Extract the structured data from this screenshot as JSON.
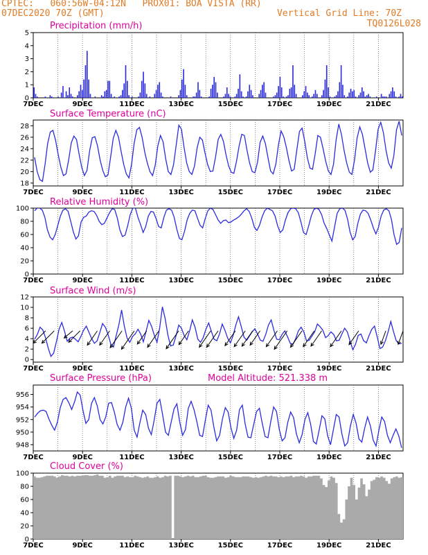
{
  "header": {
    "line1": "CPTEC:   060:56W-04:12N   PROX01: BOA VISTA (RR)",
    "line2_left": "07DEC2020 70Z (GMT)",
    "line2_right": "Vertical Grid Line: 70Z",
    "line3_right": "TQ0126L028"
  },
  "colors": {
    "header": "#e07b24",
    "title": "#e0009a",
    "series": "#2a2ae0",
    "cloud": "#aaaaaa",
    "wind_arrow": "#000000"
  },
  "x_tick_labels": [
    "7DEC",
    "9DEC",
    "11DEC",
    "13DEC",
    "15DEC",
    "17DEC",
    "19DEC",
    "21DEC"
  ],
  "chart_data": [
    {
      "type": "bar",
      "title": "Precipitation (mm/h)",
      "ylim": [
        0,
        5
      ],
      "yticks": [
        0,
        1,
        2,
        3,
        4,
        5
      ],
      "x_range_days": [
        7,
        22
      ],
      "values": [
        0.8,
        0.3,
        0.1,
        0,
        0,
        0,
        0,
        0.1,
        0,
        0,
        0.2,
        0.1,
        0,
        0,
        0,
        0.1,
        0,
        0.4,
        0.9,
        0,
        0.5,
        0.2,
        0.8,
        0.3,
        0.1,
        0,
        0,
        0.2,
        0.5,
        1.0,
        0.6,
        1.4,
        2.5,
        3.6,
        1.4,
        0.3,
        0,
        0,
        0.1,
        0,
        0,
        0,
        0.2,
        0.1,
        0.5,
        0.6,
        1.3,
        1.3,
        0.3,
        0,
        0.1,
        0,
        0,
        0.1,
        0.2,
        0.6,
        1.1,
        2.5,
        1.3,
        0.2,
        0,
        0.1,
        0,
        0,
        0,
        0.1,
        0.4,
        1.3,
        2.0,
        1.1,
        0.3,
        0,
        0.1,
        0,
        0,
        0.3,
        0.6,
        1.0,
        1.2,
        0.4,
        0.1,
        0,
        0,
        0,
        0,
        0.1,
        0,
        0,
        0,
        0,
        0.2,
        0.6,
        1.4,
        2.2,
        1.0,
        0.2,
        0,
        0,
        0,
        0.1,
        0.1,
        0.4,
        1.2,
        0.6,
        0.1,
        0,
        0,
        0,
        0,
        0.1,
        0.7,
        1.0,
        1.6,
        1.2,
        0.4,
        0,
        0,
        0,
        0.1,
        0.3,
        0.8,
        0.3,
        0.1,
        0,
        0,
        0.1,
        0.3,
        0.7,
        1.8,
        0.5,
        0.1,
        0,
        0.1,
        0.5,
        1.0,
        0.6,
        0.2,
        0,
        0,
        0,
        0.3,
        0.6,
        1.0,
        1.2,
        0.4,
        0,
        0,
        0,
        0,
        0.1,
        0.2,
        0.4,
        0.9,
        1.6,
        0.8,
        0.1,
        0,
        0.1,
        0.2,
        0.7,
        0.8,
        2.5,
        1.0,
        0.3,
        0,
        0,
        0,
        0.2,
        0.5,
        0.9,
        0.4,
        0.2,
        0,
        0.1,
        0.3,
        0.6,
        0.3,
        0,
        0,
        0.2,
        0.6,
        1.4,
        2.5,
        0.8,
        0.1,
        0,
        0,
        0.1,
        0.2,
        0.5,
        1.2,
        2.5,
        1.0,
        0.2,
        0,
        0.1,
        0.4,
        0.7,
        0.5,
        0.6,
        0.1,
        0,
        0.2,
        0.4,
        0.8,
        0.5,
        0.1,
        0.2,
        0.3,
        0.1,
        0,
        0,
        0,
        0.1,
        0,
        0,
        0.3,
        0.1,
        0.1,
        0.1,
        0,
        0.3,
        0.5,
        0.8,
        0.5,
        0.1,
        0,
        0.1,
        0.3,
        0.1
      ]
    },
    {
      "type": "line",
      "title": "Surface Temperature (nC)",
      "ylim": [
        17.5,
        29
      ],
      "yticks": [
        18,
        20,
        22,
        24,
        26,
        28
      ],
      "x_range_days": [
        7,
        22
      ],
      "values": [
        22.5,
        20,
        18.6,
        18.3,
        21.2,
        24.9,
        26.9,
        27.2,
        25.5,
        23,
        20.8,
        19.3,
        19.6,
        22,
        25,
        26.2,
        25.6,
        23,
        20.7,
        19.3,
        20.2,
        23.6,
        25.9,
        26.1,
        24.5,
        22,
        20.2,
        19.1,
        19.4,
        22.5,
        25.8,
        27.2,
        26,
        23.5,
        21.2,
        19.6,
        18.9,
        21.3,
        25,
        27.3,
        27.7,
        26,
        23.4,
        21.5,
        20,
        19.3,
        21.1,
        24.5,
        26.3,
        25.2,
        22.2,
        20,
        19.5,
        21.2,
        24.6,
        28.1,
        27.4,
        24.2,
        21.5,
        20,
        19.5,
        21,
        24.2,
        26,
        25.5,
        23.2,
        21.2,
        20,
        20.1,
        22.5,
        25.6,
        26.5,
        25.3,
        22.9,
        21,
        19.9,
        19.7,
        21.8,
        24.5,
        26.5,
        26.3,
        23.7,
        21.5,
        20,
        19.8,
        21.6,
        25.1,
        26.2,
        24.9,
        22.4,
        20.1,
        19.6,
        21.3,
        24.7,
        27.1,
        26.1,
        24.2,
        21.9,
        20.1,
        20.4,
        23.8,
        27,
        27.6,
        25.3,
        22.4,
        20.6,
        20.4,
        23.1,
        26.3,
        26,
        24,
        21.8,
        20.1,
        19.5,
        21.3,
        25.6,
        28.3,
        26.5,
        23.7,
        21.5,
        19.9,
        19.5,
        22,
        25.9,
        27.8,
        26.5,
        24,
        21.5,
        19.9,
        20.3,
        23.6,
        27.4,
        28.6,
        26.8,
        23.7,
        21.5,
        20.6,
        22.8,
        27.3,
        28.8,
        26.3
      ]
    },
    {
      "type": "line",
      "title": "Relative Humidity (%)",
      "ylim": [
        0,
        100
      ],
      "yticks": [
        0,
        20,
        40,
        60,
        80,
        100
      ],
      "x_range_days": [
        7,
        22
      ],
      "values": [
        96,
        100,
        100,
        97,
        86,
        67,
        56,
        52,
        60,
        74,
        88,
        97,
        99,
        95,
        80,
        64,
        53,
        58,
        79,
        86,
        88,
        94,
        96,
        95,
        89,
        80,
        75,
        77,
        85,
        93,
        99,
        98,
        85,
        67,
        57,
        59,
        73,
        90,
        100,
        100,
        86,
        75,
        63,
        72,
        88,
        95,
        94,
        84,
        72,
        70,
        86,
        97,
        99,
        97,
        86,
        68,
        54,
        52,
        65,
        82,
        92,
        97,
        96,
        85,
        74,
        70,
        84,
        96,
        100,
        98,
        90,
        82,
        77,
        81,
        82,
        78,
        79,
        82,
        84,
        87,
        91,
        96,
        99,
        95,
        85,
        71,
        66,
        74,
        87,
        96,
        100,
        98,
        96,
        88,
        73,
        63,
        67,
        82,
        93,
        99,
        100,
        99,
        93,
        79,
        63,
        60,
        73,
        88,
        98,
        100,
        98,
        90,
        77,
        69,
        59,
        50,
        71,
        92,
        99,
        100,
        97,
        84,
        64,
        52,
        57,
        77,
        91,
        97,
        96,
        92,
        82,
        70,
        61,
        71,
        88,
        97,
        99,
        96,
        83,
        60,
        45,
        48,
        70
      ]
    },
    {
      "type": "line",
      "title": "Surface Wind (m/s)",
      "ylim": [
        -0.5,
        12
      ],
      "yticks": [
        0,
        2,
        4,
        6,
        8,
        10,
        12
      ],
      "x_range_days": [
        7,
        22
      ],
      "values": [
        3.9,
        4.8,
        6.2,
        5.7,
        4.2,
        2.2,
        0.6,
        1.2,
        3.4,
        5.8,
        7.1,
        5.4,
        3.5,
        4.1,
        4.3,
        3.9,
        3.4,
        4.4,
        5.6,
        6.4,
        5.2,
        4.0,
        3.1,
        3.6,
        5.2,
        6.9,
        6.2,
        4.8,
        3.0,
        2.4,
        4.6,
        6.7,
        9.5,
        6.4,
        4.1,
        3.3,
        4.4,
        4.9,
        5.8,
        4.9,
        3.4,
        5.4,
        7.5,
        6.4,
        4.7,
        3.3,
        6.1,
        10.1,
        7.9,
        4.7,
        2.6,
        2.8,
        4.5,
        6.6,
        6.0,
        4.6,
        3.8,
        5.5,
        7.6,
        6.2,
        3.9,
        3.3,
        4.2,
        5.8,
        7.0,
        5.4,
        3.9,
        3.6,
        4.9,
        6.8,
        5.6,
        4.1,
        3.2,
        4.6,
        6.6,
        8.2,
        6.3,
        4.3,
        3.7,
        4.5,
        5.3,
        5.9,
        4.9,
        3.7,
        3.5,
        4.8,
        6.6,
        7.6,
        5.6,
        3.9,
        3.8,
        4.8,
        5.5,
        4.4,
        3.1,
        2.9,
        4.0,
        5.5,
        6.2,
        5.3,
        3.6,
        3.7,
        4.5,
        5.3,
        6.8,
        6.3,
        5.6,
        4.2,
        4.6,
        5.3,
        4.8,
        3.6,
        3.7,
        4.9,
        6.0,
        5.3,
        3.6,
        1.9,
        2.9,
        4.6,
        4.9,
        3.6,
        3.2,
        4.6,
        5.8,
        6.4,
        4.3,
        2.1,
        2.4,
        3.6,
        5.3,
        7.3,
        5.3,
        3.6,
        3.0,
        3.1
      ],
      "arrows": [
        {
          "x": 7.5,
          "v": 2.8,
          "a": 225
        },
        {
          "x": 7.85,
          "v": 2.8,
          "a": 225
        },
        {
          "x": 8.6,
          "v": 1.8,
          "a": 230
        },
        {
          "x": 8.9,
          "v": 2.6,
          "a": 225
        },
        {
          "x": 9.6,
          "v": 2.8,
          "a": 215
        },
        {
          "x": 10.1,
          "v": 2.8,
          "a": 215
        },
        {
          "x": 10.6,
          "v": 3.3,
          "a": 215
        },
        {
          "x": 11.1,
          "v": 3.6,
          "a": 215
        },
        {
          "x": 11.6,
          "v": 2.6,
          "a": 215
        },
        {
          "x": 12.1,
          "v": 3.2,
          "a": 215
        },
        {
          "x": 12.9,
          "v": 3.5,
          "a": 215
        },
        {
          "x": 13.3,
          "v": 2.7,
          "a": 215
        },
        {
          "x": 14.2,
          "v": 3.2,
          "a": 215
        },
        {
          "x": 14.5,
          "v": 3.2,
          "a": 215
        },
        {
          "x": 15.2,
          "v": 2.9,
          "a": 215
        },
        {
          "x": 15.6,
          "v": 3.1,
          "a": 215
        },
        {
          "x": 15.9,
          "v": 3.0,
          "a": 215
        },
        {
          "x": 16.2,
          "v": 2.8,
          "a": 215
        },
        {
          "x": 16.9,
          "v": 3.1,
          "a": 215
        },
        {
          "x": 17.3,
          "v": 3.6,
          "a": 215
        },
        {
          "x": 17.9,
          "v": 3.2,
          "a": 215
        },
        {
          "x": 18.4,
          "v": 3.1,
          "a": 215
        },
        {
          "x": 18.7,
          "v": 3.0,
          "a": 215
        },
        {
          "x": 19.5,
          "v": 3.1,
          "a": 215
        },
        {
          "x": 20.2,
          "v": 2.7,
          "a": 215
        },
        {
          "x": 21.3,
          "v": 2.3,
          "a": 200
        },
        {
          "x": 22.0,
          "v": 2.3,
          "a": 200
        }
      ]
    },
    {
      "type": "line",
      "title": "Surface Pressure (hPa)",
      "subtitle": "Model Altitude: 521.338  m",
      "ylim": [
        947,
        957.5
      ],
      "yticks": [
        948,
        950,
        952,
        954,
        956
      ],
      "x_range_days": [
        7,
        22
      ],
      "values": [
        952.4,
        953.0,
        953.4,
        953.5,
        953.3,
        952.1,
        951.1,
        950.3,
        951.6,
        953.9,
        955.2,
        955.5,
        954.7,
        953.6,
        954.8,
        956.4,
        955.9,
        953.4,
        951.4,
        952.0,
        954.6,
        955.5,
        954.2,
        952.0,
        951.3,
        952.4,
        954.6,
        954.7,
        953.2,
        951.2,
        950.3,
        951.6,
        954.0,
        955.4,
        953.8,
        950.3,
        949.2,
        951.5,
        953.5,
        952.8,
        950.6,
        949.6,
        951.9,
        954.6,
        955.2,
        952.7,
        950.0,
        949.5,
        951.6,
        953.7,
        954.5,
        951.6,
        949.5,
        950.4,
        953.8,
        954.9,
        953.6,
        951.7,
        949.5,
        949.3,
        951.9,
        954.3,
        953.5,
        950.8,
        948.6,
        949.5,
        952.1,
        953.9,
        953.2,
        950.7,
        949.0,
        950.3,
        953.6,
        954.3,
        951.3,
        949.2,
        949.1,
        951.2,
        953.3,
        953.8,
        951.4,
        949.3,
        949.1,
        951.7,
        954.0,
        953.3,
        950.4,
        948.6,
        949.1,
        951.6,
        953.2,
        952.3,
        949.7,
        948.3,
        949.6,
        952.0,
        953.1,
        951.3,
        948.5,
        948.1,
        950.3,
        952.6,
        952.1,
        949.4,
        948.0,
        950.4,
        952.8,
        952.4,
        949.7,
        947.8,
        948.3,
        951.0,
        952.8,
        951.4,
        948.9,
        948.4,
        950.6,
        952.4,
        951.0,
        948.7,
        947.8,
        950.3,
        952.4,
        951.7,
        949.5,
        948.3,
        949.5,
        950.5,
        949.4,
        947.5
      ]
    },
    {
      "type": "area",
      "title": "Cloud Cover (%)",
      "ylim": [
        0,
        100
      ],
      "yticks": [
        0,
        20,
        40,
        60,
        80,
        100
      ],
      "x_range_days": [
        7,
        22
      ],
      "values": [
        95,
        93,
        93,
        94,
        95,
        96,
        96,
        96,
        95,
        93,
        95,
        97,
        96,
        96,
        95,
        96,
        95,
        96,
        96,
        96,
        97,
        97,
        96,
        96,
        97,
        98,
        96,
        96,
        93,
        94,
        96,
        93,
        95,
        96,
        96,
        96,
        94,
        95,
        94,
        94,
        96,
        95,
        94,
        93,
        94,
        95,
        93,
        93,
        94,
        95,
        93,
        94,
        96,
        95,
        96,
        0,
        96,
        96,
        95,
        94,
        95,
        96,
        95,
        96,
        94,
        94,
        95,
        96,
        96,
        94,
        93,
        93,
        94,
        95,
        95,
        95,
        93,
        94,
        96,
        95,
        94,
        94,
        94,
        95,
        95,
        95,
        94,
        93,
        94,
        93,
        94,
        95,
        96,
        95,
        96,
        95,
        95,
        94,
        95,
        94,
        95,
        95,
        96,
        94,
        95,
        95,
        96,
        95,
        93,
        95,
        95,
        96,
        96,
        96,
        92,
        82,
        79,
        89,
        95,
        93,
        85,
        38,
        25,
        30,
        60,
        80,
        93,
        82,
        60,
        78,
        92,
        83,
        65,
        75,
        88,
        90,
        94,
        93,
        95,
        93,
        88,
        84,
        92,
        94,
        95,
        93,
        94
      ]
    }
  ]
}
